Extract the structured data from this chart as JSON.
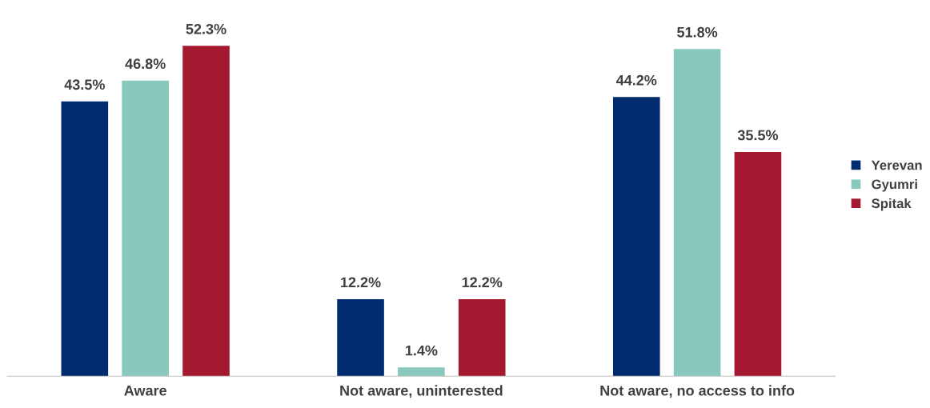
{
  "chart_data": {
    "type": "bar",
    "categories": [
      "Aware",
      "Not aware, uninterested",
      "Not aware, no access to info"
    ],
    "series": [
      {
        "name": "Yerevan",
        "color": "#002b6e",
        "values": [
          43.5,
          12.2,
          44.2
        ],
        "value_labels": [
          "43.5%",
          "12.2%",
          "44.2%"
        ]
      },
      {
        "name": "Gyumri",
        "color": "#89c8bc",
        "values": [
          46.8,
          1.4,
          51.8
        ],
        "value_labels": [
          "46.8%",
          "1.4%",
          "51.8%"
        ]
      },
      {
        "name": "Spitak",
        "color": "#a51930",
        "values": [
          52.3,
          12.2,
          35.5
        ],
        "value_labels": [
          "52.3%",
          "12.2%",
          "35.5%"
        ]
      }
    ],
    "legend": "right",
    "grid": false
  }
}
